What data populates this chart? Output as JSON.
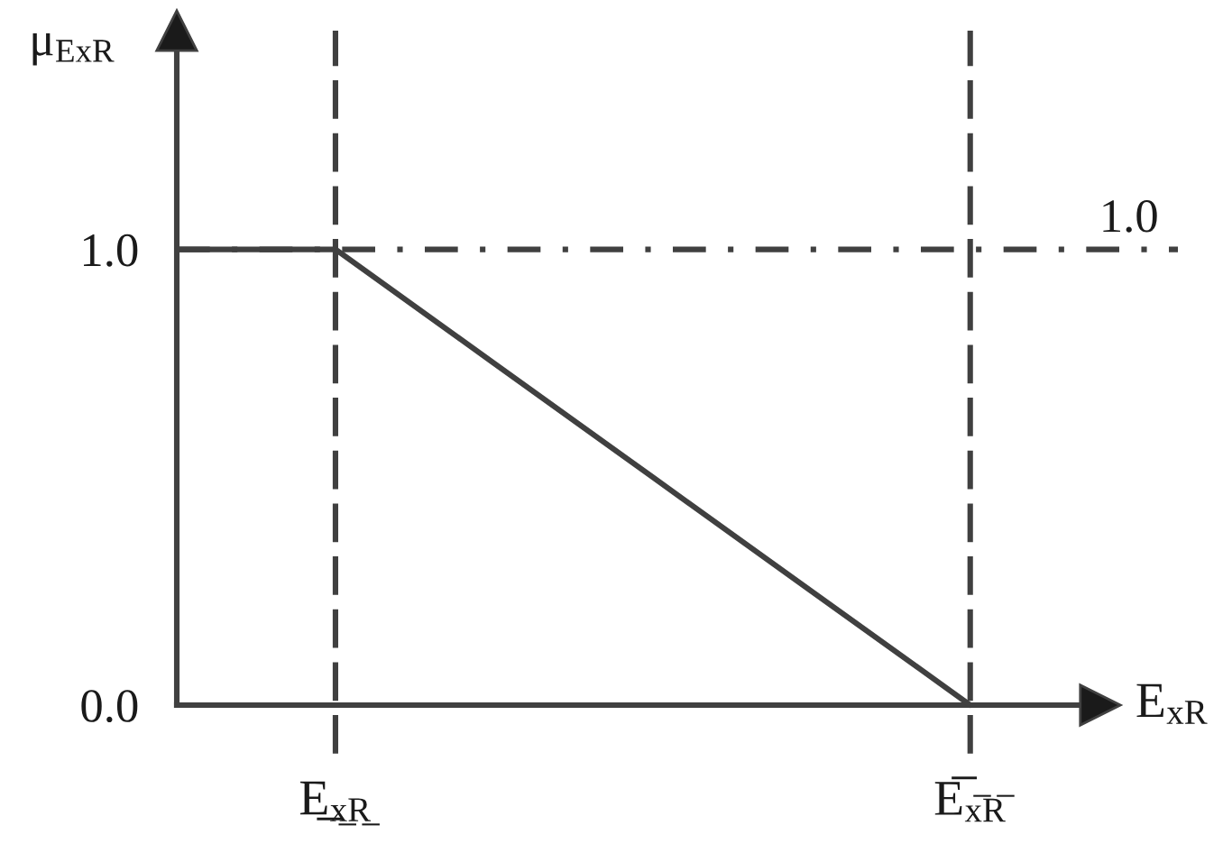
{
  "chart_data": {
    "type": "line",
    "ylabel": "μ$_{ExR}$",
    "xlabel": "E$_{xR}$",
    "categories": [
      null,
      "E̲$_{x̲R̲}$",
      null,
      null,
      null,
      "E̅$_{x̅R̅}$"
    ],
    "values": [
      1.0,
      1.0,
      0.75,
      0.5,
      0.25,
      0.0
    ],
    "color": "#404040",
    "line_style": "solid",
    "ylim": [
      0,
      1.48
    ],
    "yticks": [
      {
        "value": 0,
        "label": "0.0"
      },
      {
        "value": 1,
        "label": "1.0"
      }
    ],
    "ref_lines": [
      {
        "axis": "x",
        "value": "E̲$_{x̲R̲}$",
        "line_style": "dashed",
        "color": "#404040"
      },
      {
        "axis": "x",
        "value": "E̅$_{x̅R̅}$",
        "line_style": "dashed",
        "color": "#404040"
      },
      {
        "axis": "y",
        "value": 1,
        "label": "1.0",
        "line_style": "dashdot",
        "color": "#404040"
      }
    ]
  }
}
